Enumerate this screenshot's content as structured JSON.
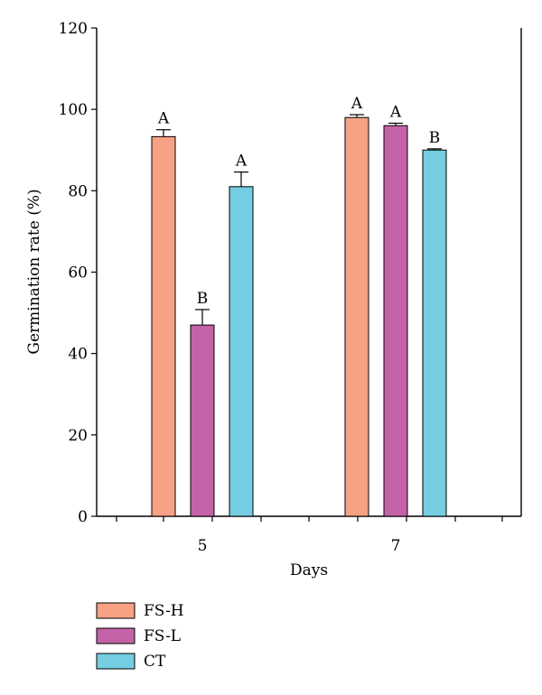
{
  "chart_data": {
    "type": "bar",
    "xlabel": "Days",
    "ylabel": "Germination rate (%)",
    "ylim": [
      0,
      120
    ],
    "yticks": [
      0,
      20,
      40,
      60,
      80,
      100,
      120
    ],
    "categories": [
      "5",
      "7"
    ],
    "series": [
      {
        "name": "FS-H",
        "color": "#f7a185",
        "values": [
          93.3,
          98.0
        ],
        "errors": [
          1.7,
          0.7
        ],
        "letters": [
          "A",
          "A"
        ]
      },
      {
        "name": "FS-L",
        "color": "#c462a8",
        "values": [
          47.0,
          96.0
        ],
        "errors": [
          3.8,
          0.6
        ],
        "letters": [
          "B",
          "A"
        ]
      },
      {
        "name": "CT",
        "color": "#74cde0",
        "values": [
          81.0,
          90.0
        ],
        "errors": [
          3.6,
          0.3
        ],
        "letters": [
          "A",
          "B"
        ]
      }
    ],
    "grid": false,
    "legend_position": "bottom-left"
  }
}
